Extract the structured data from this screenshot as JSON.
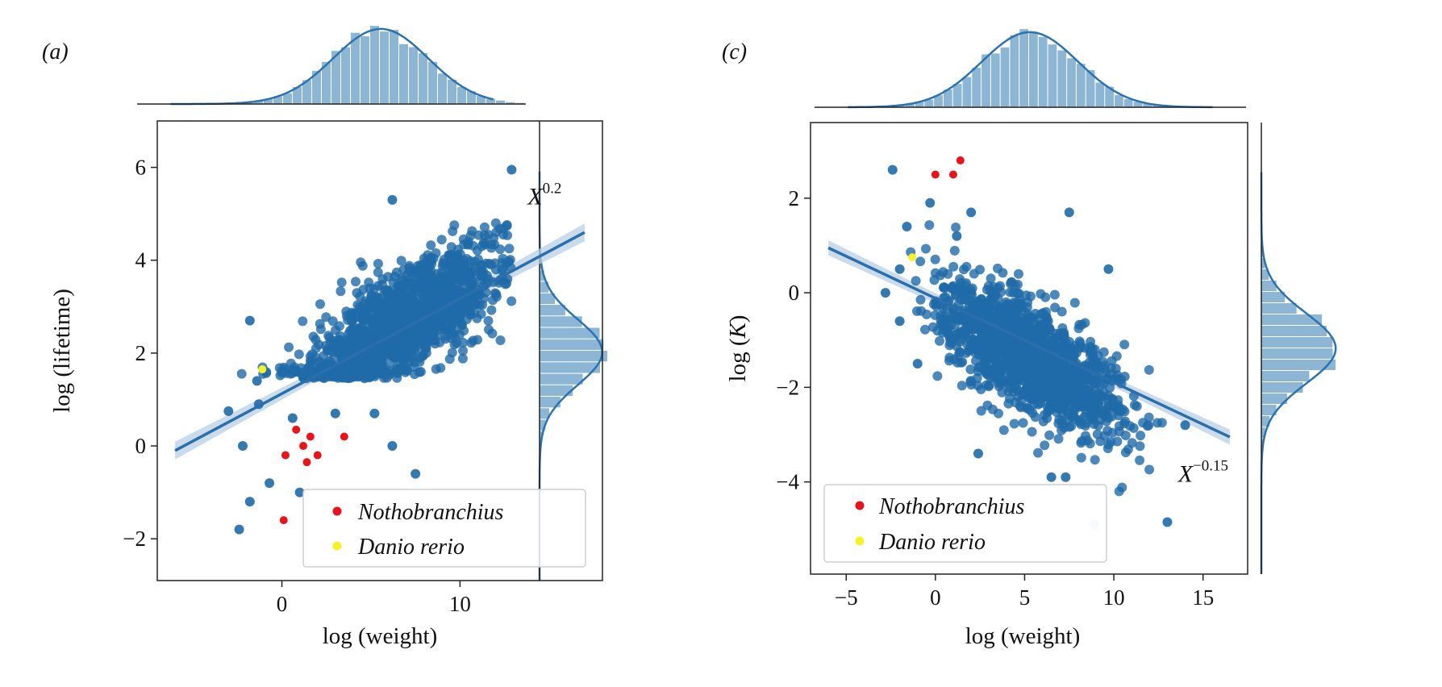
{
  "colors": {
    "points": "#1f6aa8",
    "points_alpha": 0.8,
    "line": "#2a6fab",
    "band": "#b8d0e6",
    "hist": "#8db6d5",
    "kde": "#2c72af",
    "nothobranchius": "#e8141b",
    "danio": "#f5f22a",
    "axis": "#222222"
  },
  "chart_data": [
    {
      "panel_label": "(a)",
      "type": "scatter",
      "title": "",
      "xlabel": "log (weight)",
      "ylabel": "log (lifetime)",
      "xlim": [
        -7,
        18
      ],
      "ylim": [
        -2.9,
        7.0
      ],
      "xticks": [
        {
          "v": 0,
          "label": "0"
        },
        {
          "v": 10,
          "label": "10"
        }
      ],
      "yticks": [
        {
          "v": -2,
          "label": "−2"
        },
        {
          "v": 0,
          "label": "0"
        },
        {
          "v": 2,
          "label": "2"
        },
        {
          "v": 4,
          "label": "4"
        },
        {
          "v": 6,
          "label": "6"
        }
      ],
      "grid": false,
      "legend_position": "bottom-right",
      "annotation": {
        "base": "X",
        "exp": "0.2",
        "x": 13.8,
        "y": 5.2
      },
      "regression": {
        "x0": -6,
        "y0": -0.1,
        "x1": 17,
        "y1": 4.6,
        "band": 0.12
      },
      "cloud": {
        "n": 1500,
        "x_mean": 6.8,
        "x_sd": 2.7,
        "y_intercept": 1.15,
        "y_slope": 0.22,
        "y_sd": 0.55,
        "x_min": -3,
        "x_max": 13,
        "y_floor": 1.45
      },
      "outliers": [
        [
          12.9,
          5.95
        ],
        [
          6.2,
          5.3
        ],
        [
          -1.8,
          2.7
        ],
        [
          -3,
          0.75
        ],
        [
          -2.2,
          0
        ],
        [
          -1.8,
          -1.2
        ],
        [
          -0.7,
          -0.8
        ],
        [
          -2.4,
          -1.8
        ],
        [
          1,
          -1
        ],
        [
          6.2,
          0
        ],
        [
          7.5,
          -0.6
        ],
        [
          -1.4,
          1.4
        ],
        [
          -1.3,
          0.9
        ],
        [
          0.6,
          0.6
        ],
        [
          3,
          0.7
        ],
        [
          5.2,
          0.7
        ]
      ],
      "marginal_x": {
        "mean": 6.6,
        "sd": 2.9,
        "skew": -0.5
      },
      "marginal_y": {
        "mean": 2.25,
        "sd": 0.75,
        "skew": -0.4
      },
      "legend": [
        {
          "name": "Nothobranchius",
          "color": "#e8141b"
        },
        {
          "name": "Danio rerio",
          "color": "#f5f22a"
        }
      ],
      "highlight_series": [
        {
          "name": "Nothobranchius",
          "points": [
            [
              0.8,
              0.35
            ],
            [
              1.2,
              0.0
            ],
            [
              1.6,
              0.2
            ],
            [
              0.2,
              -0.2
            ],
            [
              2.0,
              -0.2
            ],
            [
              1.4,
              -0.35
            ],
            [
              3.5,
              0.2
            ],
            [
              0.1,
              -1.6
            ]
          ]
        },
        {
          "name": "Danio rerio",
          "points": [
            [
              -1.1,
              1.65
            ]
          ]
        }
      ]
    },
    {
      "panel_label": "(c)",
      "type": "scatter",
      "title": "",
      "xlabel": "log (weight)",
      "ylabel": "log (K)",
      "ylabel_parts": [
        "log (",
        "K",
        ")"
      ],
      "xlim": [
        -7,
        17.5
      ],
      "ylim": [
        -5.95,
        3.6
      ],
      "xticks": [
        {
          "v": -5,
          "label": "−5"
        },
        {
          "v": 0,
          "label": "0"
        },
        {
          "v": 5,
          "label": "5"
        },
        {
          "v": 10,
          "label": "10"
        },
        {
          "v": 15,
          "label": "15"
        }
      ],
      "yticks": [
        {
          "v": -4,
          "label": "−4"
        },
        {
          "v": -2,
          "label": "−2"
        },
        {
          "v": 0,
          "label": "0"
        },
        {
          "v": 2,
          "label": "2"
        }
      ],
      "grid": false,
      "legend_position": "bottom-left",
      "annotation": {
        "base": "X",
        "exp": "−0.15",
        "x": 13.6,
        "y": -4.0
      },
      "regression": {
        "x0": -6,
        "y0": 0.95,
        "x1": 16.5,
        "y1": -3.05,
        "band": 0.1
      },
      "cloud": {
        "n": 1500,
        "x_mean": 5.3,
        "x_sd": 2.5,
        "y_intercept": -0.2,
        "y_slope": -0.22,
        "y_sd": 0.55,
        "x_min": -1.5,
        "x_max": 13,
        "y_floor": -99
      },
      "outliers": [
        [
          -2.4,
          2.6
        ],
        [
          -0.3,
          1.9
        ],
        [
          2.0,
          1.7
        ],
        [
          7.5,
          1.7
        ],
        [
          -1.6,
          1.4
        ],
        [
          1.2,
          1.2
        ],
        [
          9.7,
          0.5
        ],
        [
          -2.0,
          0.5
        ],
        [
          -2.8,
          0.0
        ],
        [
          -2.0,
          -0.6
        ],
        [
          -1.0,
          -1.5
        ],
        [
          2.4,
          -3.4
        ],
        [
          6.5,
          -3.9
        ],
        [
          7.3,
          -3.9
        ],
        [
          13.0,
          -4.85
        ],
        [
          14.0,
          -2.8
        ]
      ],
      "faded_points": [
        [
          8.9,
          -4.9
        ]
      ],
      "marginal_x": {
        "mean": 5.3,
        "sd": 2.7,
        "skew": 0.0
      },
      "marginal_y": {
        "mean": -1.3,
        "sd": 0.75,
        "skew": 0.2
      },
      "legend": [
        {
          "name": "Nothobranchius",
          "color": "#e8141b"
        },
        {
          "name": "Danio rerio",
          "color": "#f5f22a"
        }
      ],
      "highlight_series": [
        {
          "name": "Nothobranchius",
          "points": [
            [
              0.0,
              2.5
            ],
            [
              1.0,
              2.5
            ],
            [
              1.4,
              2.8
            ]
          ]
        },
        {
          "name": "Danio rerio",
          "points": [
            [
              -1.3,
              0.75
            ]
          ]
        }
      ]
    }
  ]
}
